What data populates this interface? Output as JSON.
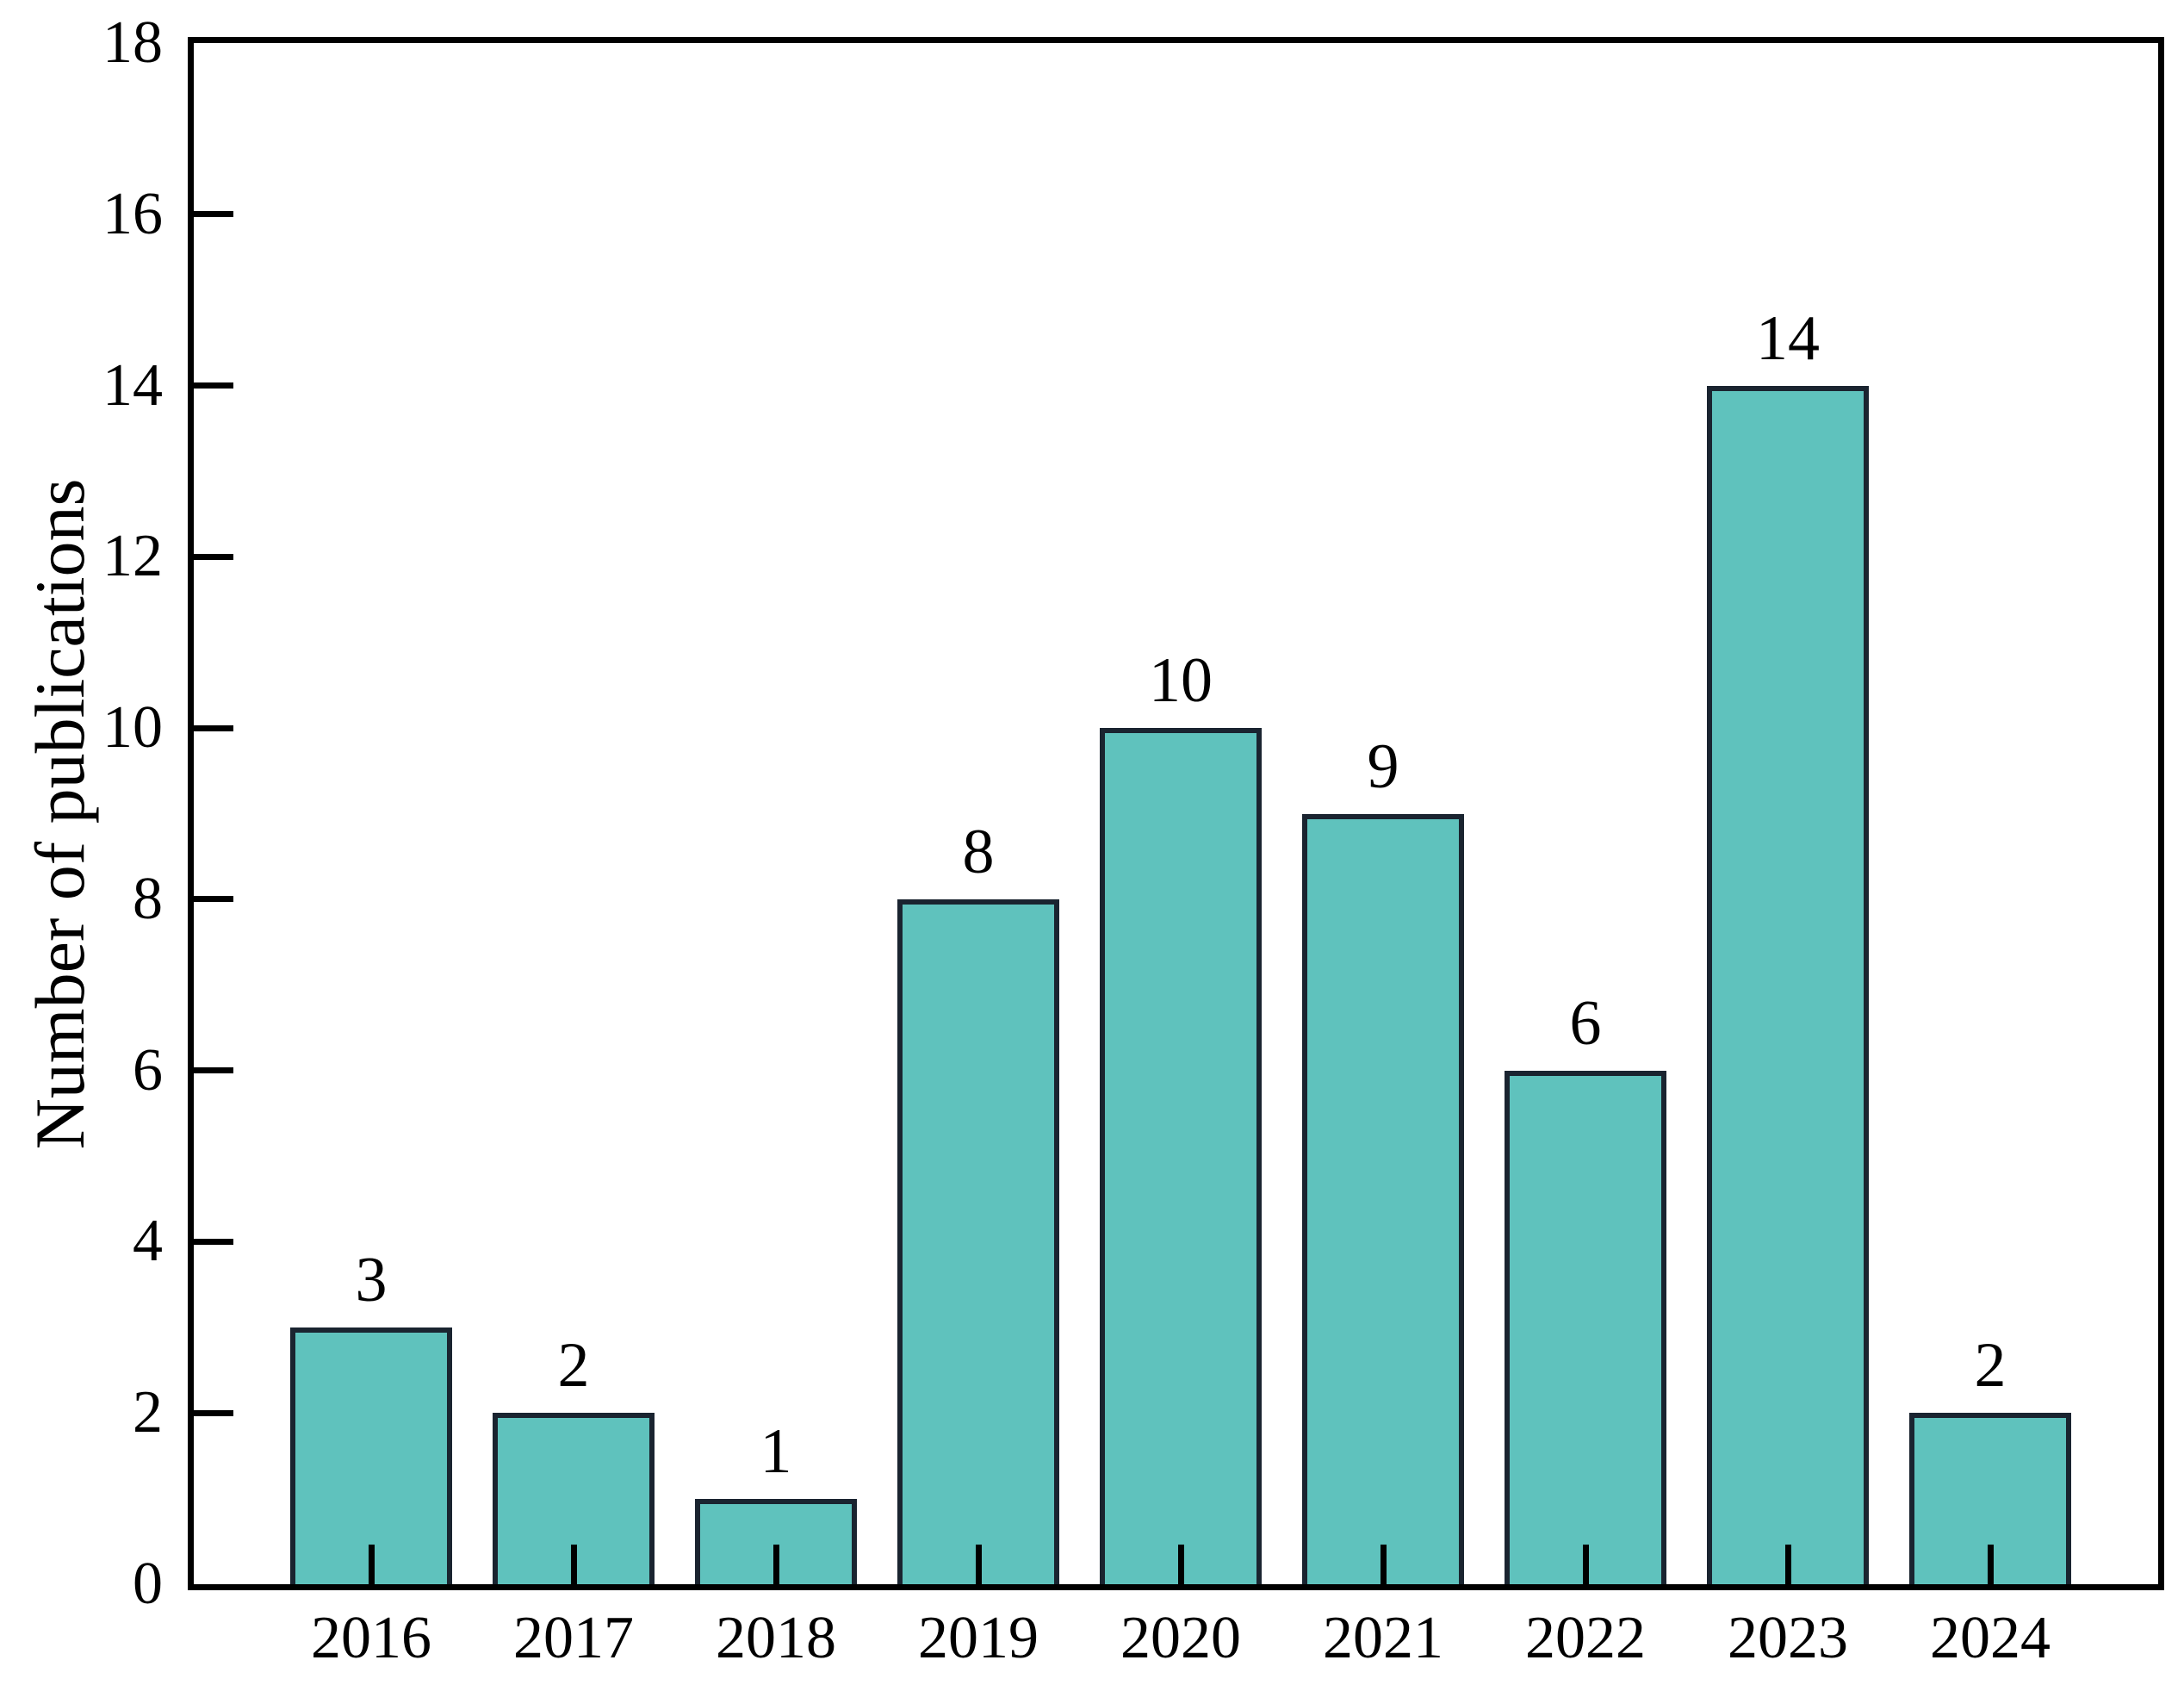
{
  "chart_data": {
    "type": "bar",
    "categories": [
      "2016",
      "2017",
      "2018",
      "2019",
      "2020",
      "2021",
      "2022",
      "2023",
      "2024"
    ],
    "values": [
      3,
      2,
      1,
      8,
      10,
      9,
      6,
      14,
      2
    ],
    "title": "",
    "xlabel": "",
    "ylabel": "Number of publications",
    "ylim": [
      0,
      18
    ],
    "yticks": [
      0,
      2,
      4,
      6,
      8,
      10,
      12,
      14,
      16,
      18
    ],
    "grid": false,
    "legend": false,
    "bar_color": "#5fc2bd",
    "bar_edge_color": "#1a2430",
    "axis_color": "#000000",
    "text_color": "#000000"
  }
}
